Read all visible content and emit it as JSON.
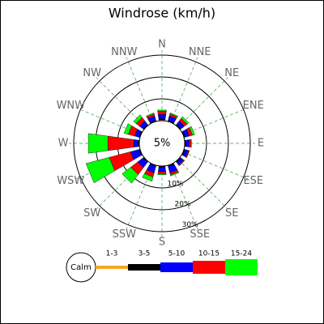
{
  "chart_data": {
    "type": "windrose",
    "title": "Windrose (km/h)",
    "directions": [
      "N",
      "NNE",
      "NE",
      "ENE",
      "E",
      "ESE",
      "SE",
      "SSE",
      "S",
      "SSW",
      "SW",
      "WSW",
      "W",
      "WNW",
      "NW",
      "NNW"
    ],
    "calm": {
      "label": "Calm",
      "value": 5,
      "value_label": "5%"
    },
    "rlim": [
      0,
      30
    ],
    "rticks": [
      {
        "value": 10,
        "label": "10%"
      },
      {
        "value": 20,
        "label": "20%"
      },
      {
        "value": 30,
        "label": "30%"
      }
    ],
    "grid": true,
    "series": [
      {
        "name": "1-3",
        "color": "#f5a623",
        "values": [
          0.5,
          0.3,
          0.3,
          0.3,
          0.3,
          0.3,
          0.3,
          0.3,
          0.3,
          0.3,
          0.3,
          0.3,
          0.3,
          0.3,
          0.3,
          0.3
        ]
      },
      {
        "name": "3-5",
        "color": "#000000",
        "values": [
          0.5,
          0.3,
          0.3,
          0.3,
          0.3,
          0.3,
          0.3,
          0.3,
          0.3,
          0.3,
          0.3,
          0.3,
          0.3,
          0.3,
          0.3,
          0.3
        ]
      },
      {
        "name": "5-10",
        "color": "#0000ff",
        "values": [
          2,
          2,
          2,
          2,
          1.5,
          1.5,
          1.5,
          3,
          2,
          3,
          3,
          4,
          2,
          2,
          2,
          2
        ]
      },
      {
        "name": "10-15",
        "color": "#ff0000",
        "values": [
          1.5,
          1,
          1.5,
          1.5,
          1,
          0.5,
          0.5,
          1,
          1,
          2,
          4,
          10,
          12,
          3,
          2,
          1
        ]
      },
      {
        "name": "15-24",
        "color": "#00ff00",
        "values": [
          0.5,
          0.5,
          1,
          1,
          0,
          0,
          0,
          0.5,
          0.5,
          2,
          5,
          11,
          9,
          2,
          1.5,
          0.5
        ]
      }
    ]
  }
}
